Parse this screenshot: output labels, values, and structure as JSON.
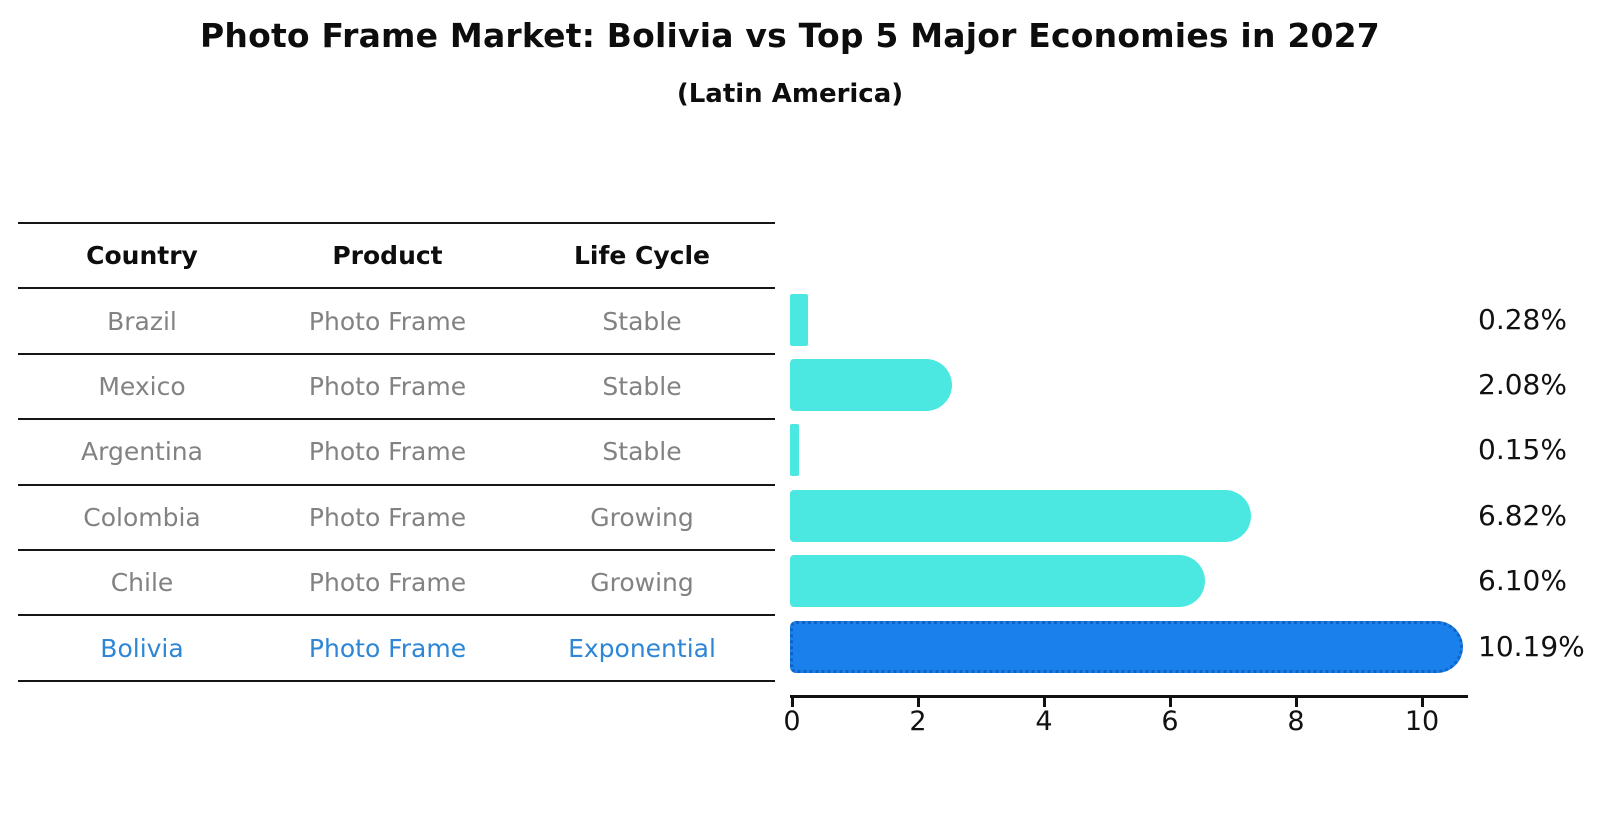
{
  "title": "Photo Frame Market: Bolivia vs Top 5 Major Economies in 2027",
  "subtitle": "(Latin America)",
  "table": {
    "headers": [
      "Country",
      "Product",
      "Life Cycle"
    ],
    "rows": [
      {
        "country": "Brazil",
        "product": "Photo Frame",
        "life_cycle": "Stable",
        "highlight": false
      },
      {
        "country": "Mexico",
        "product": "Photo Frame",
        "life_cycle": "Stable",
        "highlight": false
      },
      {
        "country": "Argentina",
        "product": "Photo Frame",
        "life_cycle": "Stable",
        "highlight": false
      },
      {
        "country": "Colombia",
        "product": "Photo Frame",
        "life_cycle": "Growing",
        "highlight": false
      },
      {
        "country": "Chile",
        "product": "Photo Frame",
        "life_cycle": "Growing",
        "highlight": false
      },
      {
        "country": "Bolivia",
        "product": "Photo Frame",
        "life_cycle": "Exponential",
        "highlight": true
      }
    ]
  },
  "chart_data": {
    "type": "bar",
    "orientation": "horizontal",
    "title": "Photo Frame Market: Bolivia vs Top 5 Major Economies in 2027 (Latin America)",
    "categories": [
      "Brazil",
      "Mexico",
      "Argentina",
      "Colombia",
      "Chile",
      "Bolivia"
    ],
    "values": [
      0.28,
      2.08,
      0.15,
      6.82,
      6.1,
      10.19
    ],
    "value_labels": [
      "0.28%",
      "2.08%",
      "0.15%",
      "6.82%",
      "6.10%",
      "10.19%"
    ],
    "highlight_index": 5,
    "x_ticks": [
      "0",
      "2",
      "4",
      "6",
      "8",
      "10"
    ],
    "x_tick_values": [
      0,
      2,
      4,
      6,
      8,
      10
    ],
    "xlim": [
      0,
      10.7
    ],
    "grid": false,
    "legend": false,
    "xlabel": "",
    "ylabel": ""
  },
  "colors": {
    "bar": "#4ae8e0",
    "highlight_bar": "#1980ec",
    "highlight_border": "#0f63c8",
    "highlight_text": "#2e86d6",
    "table_text": "#828282",
    "axis_text": "#111111",
    "title_text": "#0d0d0d"
  }
}
